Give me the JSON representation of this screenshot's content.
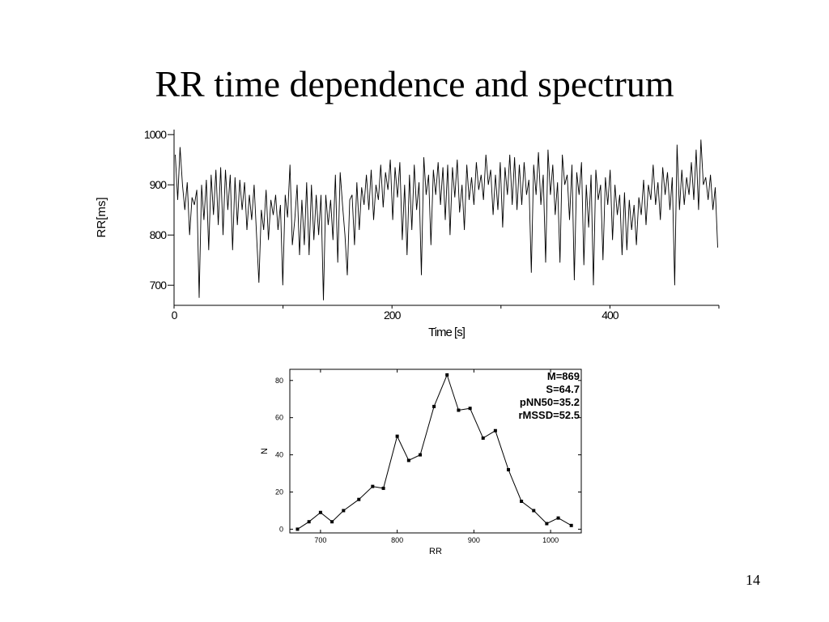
{
  "slide": {
    "title": "RR time dependence and spectrum",
    "page_number": "14"
  },
  "chart_data": [
    {
      "type": "line",
      "xlabel": "Time [s]",
      "ylabel": "RR[ms]",
      "xlim": [
        0,
        500
      ],
      "ylim": [
        660,
        1010
      ],
      "x_ticks": [
        0,
        200,
        400
      ],
      "x_tick_labels": [
        "0",
        "200",
        "400"
      ],
      "y_ticks": [
        700,
        800,
        900,
        1000
      ],
      "y_tick_labels": [
        "700",
        "800",
        "900",
        "1000"
      ],
      "grid": false,
      "series": [
        {
          "values": [
            960,
            870,
            975,
            900,
            850,
            905,
            800,
            875,
            860,
            890,
            675,
            900,
            830,
            910,
            770,
            920,
            840,
            930,
            820,
            935,
            800,
            930,
            850,
            920,
            770,
            915,
            820,
            910,
            850,
            905,
            810,
            880,
            830,
            900,
            800,
            705,
            850,
            810,
            890,
            790,
            870,
            840,
            880,
            810,
            860,
            700,
            880,
            835,
            940,
            780,
            830,
            900,
            760,
            870,
            780,
            905,
            760,
            900,
            790,
            880,
            800,
            880,
            670,
            880,
            820,
            870,
            790,
            920,
            745,
            925,
            860,
            800,
            720,
            870,
            880,
            780,
            905,
            810,
            895,
            860,
            920,
            850,
            930,
            830,
            900,
            870,
            940,
            855,
            925,
            890,
            950,
            830,
            935,
            875,
            945,
            790,
            900,
            760,
            920,
            810,
            940,
            850,
            905,
            720,
            955,
            880,
            920,
            780,
            930,
            880,
            945,
            860,
            935,
            830,
            940,
            800,
            935,
            875,
            950,
            845,
            900,
            810,
            940,
            870,
            915,
            860,
            945,
            890,
            920,
            870,
            960,
            900,
            930,
            840,
            920,
            850,
            945,
            815,
            935,
            880,
            960,
            860,
            955,
            850,
            940,
            860,
            945,
            880,
            910,
            725,
            940,
            880,
            965,
            860,
            920,
            745,
            970,
            880,
            940,
            840,
            905,
            745,
            960,
            900,
            920,
            830,
            940,
            710,
            925,
            880,
            945,
            740,
            900,
            815,
            920,
            700,
            930,
            870,
            900,
            750,
            915,
            860,
            930,
            790,
            900,
            840,
            880,
            760,
            885,
            770,
            870,
            810,
            860,
            780,
            875,
            840,
            910,
            820,
            900,
            870,
            940,
            860,
            905,
            830,
            935,
            880,
            925,
            850,
            915,
            700,
            980,
            850,
            930,
            860,
            915,
            880,
            945,
            870,
            970,
            850,
            990,
            900,
            915,
            870,
            920,
            850,
            895,
            775
          ]
        }
      ]
    },
    {
      "type": "line",
      "xlabel": "RR",
      "ylabel": "N",
      "xlim": [
        660,
        1040
      ],
      "ylim": [
        -2,
        86
      ],
      "x_ticks": [
        700,
        800,
        900,
        1000
      ],
      "x_tick_labels": [
        "700",
        "800",
        "900",
        "1000"
      ],
      "y_ticks": [
        0,
        20,
        40,
        60,
        80
      ],
      "y_tick_labels": [
        "0",
        "20",
        "40",
        "60",
        "80"
      ],
      "grid": false,
      "annotations": [
        "M=869",
        "S=64.7",
        "pNN50=35.2",
        "rMSSD=52.5"
      ],
      "series": [
        {
          "x": [
            670,
            685,
            700,
            715,
            730,
            750,
            768,
            782,
            800,
            815,
            830,
            848,
            865,
            880,
            895,
            912,
            928,
            945,
            962,
            978,
            995,
            1010,
            1027
          ],
          "values": [
            0,
            4,
            9,
            4,
            10,
            16,
            23,
            22,
            50,
            37,
            40,
            66,
            83,
            64,
            65,
            49,
            53,
            32,
            15,
            10,
            3,
            6,
            2
          ]
        }
      ]
    }
  ]
}
